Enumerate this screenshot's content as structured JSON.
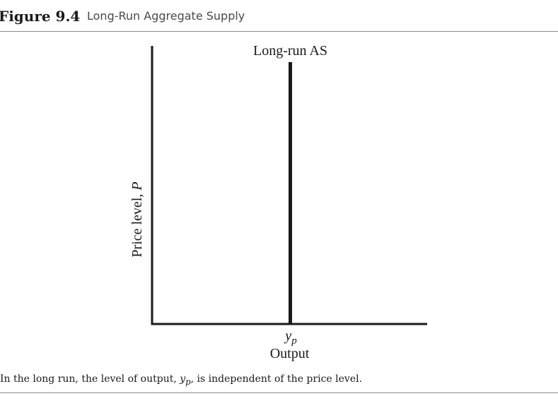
{
  "figure": {
    "number": "Figure 9.4",
    "title": "Long-Run Aggregate Supply"
  },
  "chart_data": {
    "type": "line",
    "title": "",
    "xlabel": "Output",
    "ylabel_text": "Price level, ",
    "ylabel_var": "P",
    "x_ticks": [
      {
        "label_base": "y",
        "label_sub": "p"
      }
    ],
    "series": [
      {
        "name": "Long-run AS",
        "x": [
          0.5,
          0.5
        ],
        "y": [
          0,
          1
        ],
        "color": "#1a1a1a"
      }
    ],
    "xlim": [
      0,
      1
    ],
    "ylim": [
      0,
      1
    ],
    "grid": false,
    "legend": "none"
  },
  "caption": {
    "before": "In the long run, the level of output, ",
    "var_base": "y",
    "var_sub": "p",
    "after": ", is independent of the price level."
  }
}
